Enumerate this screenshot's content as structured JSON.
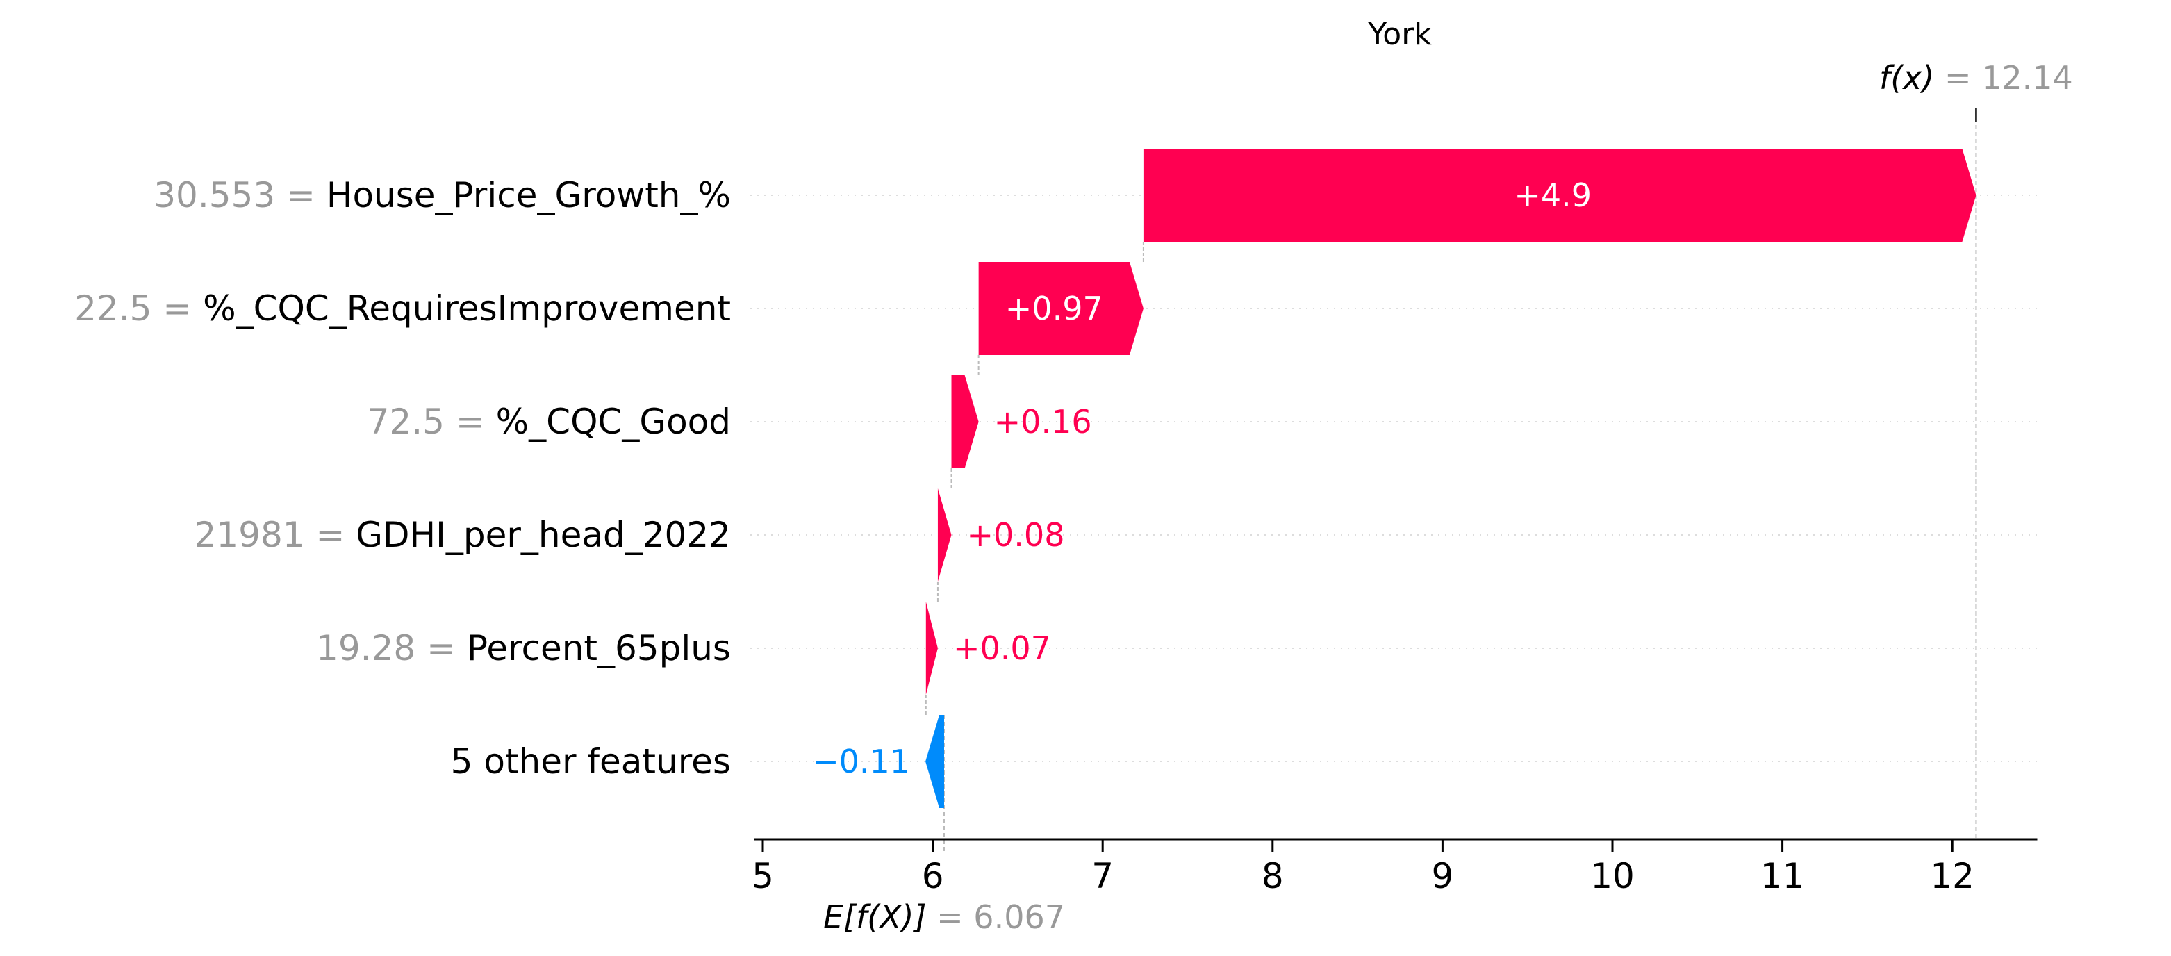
{
  "chart_data": {
    "type": "waterfall",
    "title": "York",
    "base_value": 6.067,
    "final_value": 12.14,
    "base_label": {
      "name": "E[f(X)]",
      "eq": " = ",
      "value": "6.067"
    },
    "final_label": {
      "name": "f(x)",
      "eq": " = ",
      "value": "12.14"
    },
    "xlim": [
      4.95,
      12.5
    ],
    "x_ticks": [
      5,
      6,
      7,
      8,
      9,
      10,
      11,
      12
    ],
    "features": [
      {
        "value_text": "30.553",
        "eq": " = ",
        "name": "House_Price_Growth_%",
        "shap": 4.9,
        "label": "+4.9",
        "start": 7.24,
        "end": 12.14
      },
      {
        "value_text": "22.5",
        "eq": " = ",
        "name": "%_CQC_RequiresImprovement",
        "shap": 0.97,
        "label": "+0.97",
        "start": 6.27,
        "end": 7.24
      },
      {
        "value_text": "72.5",
        "eq": " = ",
        "name": "%_CQC_Good",
        "shap": 0.16,
        "label": "+0.16",
        "start": 6.11,
        "end": 6.27
      },
      {
        "value_text": "21981",
        "eq": " = ",
        "name": "GDHI_per_head_2022",
        "shap": 0.08,
        "label": "+0.08",
        "start": 6.03,
        "end": 6.11
      },
      {
        "value_text": "19.28",
        "eq": " = ",
        "name": "Percent_65plus",
        "shap": 0.07,
        "label": "+0.07",
        "start": 5.96,
        "end": 6.03
      },
      {
        "value_text": "",
        "eq": "",
        "name": "5 other features",
        "shap": -0.11,
        "label": "−0.11",
        "start": 6.067,
        "end": 5.957
      }
    ],
    "colors": {
      "positive": "#ff0051",
      "negative": "#008bfb"
    },
    "grid": "horizontal dotted per feature row"
  }
}
